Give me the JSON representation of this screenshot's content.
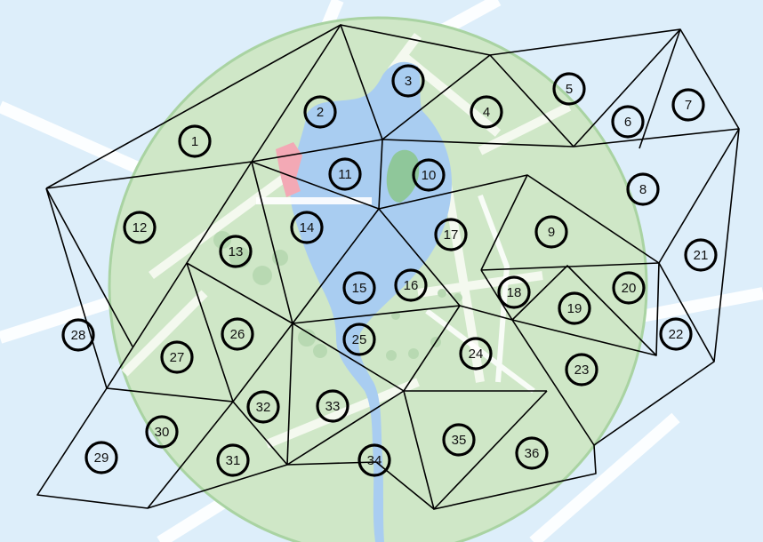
{
  "map": {
    "colors": {
      "background": "#ddeefa",
      "park_area": "#cfe7c7",
      "park_edge": "#a9d3a2",
      "water": "#a9cdf1",
      "island": "#8fc79a",
      "road": "#ffffff",
      "building_pink": "#f3a9b5",
      "edge": "#000000"
    },
    "regions": [
      {
        "id": "1",
        "label": "1"
      },
      {
        "id": "2",
        "label": "2"
      },
      {
        "id": "3",
        "label": "3"
      },
      {
        "id": "4",
        "label": "4"
      },
      {
        "id": "5",
        "label": "5"
      },
      {
        "id": "6",
        "label": "6"
      },
      {
        "id": "7",
        "label": "7"
      },
      {
        "id": "8",
        "label": "8"
      },
      {
        "id": "9",
        "label": "9"
      },
      {
        "id": "10",
        "label": "10"
      },
      {
        "id": "11",
        "label": "11"
      },
      {
        "id": "12",
        "label": "12"
      },
      {
        "id": "13",
        "label": "13"
      },
      {
        "id": "14",
        "label": "14"
      },
      {
        "id": "15",
        "label": "15"
      },
      {
        "id": "16",
        "label": "16"
      },
      {
        "id": "17",
        "label": "17"
      },
      {
        "id": "18",
        "label": "18"
      },
      {
        "id": "19",
        "label": "19"
      },
      {
        "id": "20",
        "label": "20"
      },
      {
        "id": "21",
        "label": "21"
      },
      {
        "id": "22",
        "label": "22"
      },
      {
        "id": "23",
        "label": "23"
      },
      {
        "id": "24",
        "label": "24"
      },
      {
        "id": "25",
        "label": "25"
      },
      {
        "id": "26",
        "label": "26"
      },
      {
        "id": "27",
        "label": "27"
      },
      {
        "id": "28",
        "label": "28"
      },
      {
        "id": "29",
        "label": "29"
      },
      {
        "id": "30",
        "label": "30"
      },
      {
        "id": "31",
        "label": "31"
      },
      {
        "id": "32",
        "label": "32"
      },
      {
        "id": "33",
        "label": "33"
      },
      {
        "id": "34",
        "label": "34"
      },
      {
        "id": "35",
        "label": "35"
      },
      {
        "id": "36",
        "label": "36"
      }
    ]
  }
}
